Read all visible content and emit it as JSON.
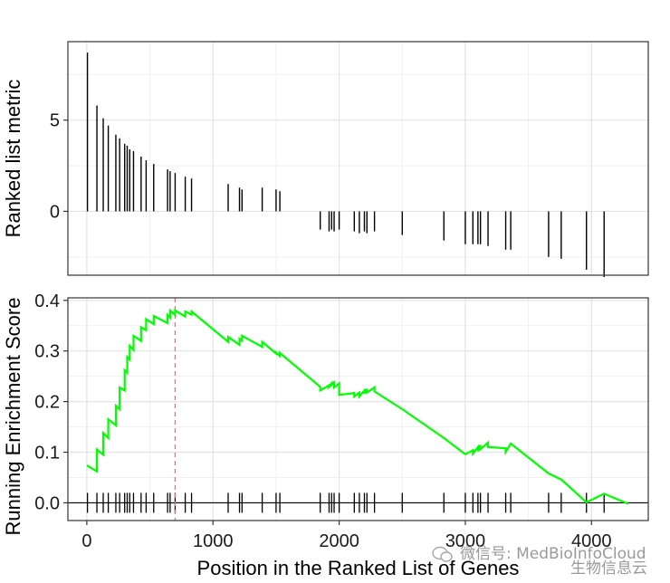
{
  "chart_data": [
    {
      "type": "bar",
      "panel": "ranked-list-metric",
      "ylabel": "Ranked list metric",
      "xlim": [
        -150,
        4450
      ],
      "ylim": [
        -3.5,
        9.3
      ],
      "y_ticks": [
        0,
        5
      ],
      "grid": true,
      "x_positions": [
        5,
        80,
        130,
        170,
        230,
        260,
        300,
        320,
        340,
        370,
        430,
        470,
        530,
        640,
        660,
        700,
        780,
        830,
        1120,
        1210,
        1230,
        1390,
        1500,
        1530,
        1850,
        1920,
        1940,
        1960,
        2000,
        2120,
        2160,
        2200,
        2220,
        2280,
        2500,
        2830,
        3000,
        3060,
        3100,
        3120,
        3180,
        3320,
        3360,
        3660,
        3760,
        3960,
        4100
      ],
      "values": [
        8.7,
        5.8,
        5.1,
        4.7,
        4.2,
        4.0,
        3.7,
        3.6,
        3.4,
        3.3,
        3.0,
        2.8,
        2.6,
        2.3,
        2.2,
        2.1,
        1.9,
        1.8,
        1.5,
        1.3,
        1.2,
        1.3,
        1.2,
        1.1,
        -1.0,
        -1.1,
        -1.0,
        -1.1,
        -1.0,
        -1.1,
        -1.2,
        -1.1,
        -1.2,
        -1.1,
        -1.3,
        -1.6,
        -1.8,
        -1.8,
        -1.8,
        -1.8,
        -1.9,
        -2.1,
        -2.1,
        -2.5,
        -2.6,
        -3.2,
        -3.6
      ]
    },
    {
      "type": "line",
      "panel": "running-enrichment-score",
      "xlabel": "Position in the Ranked List of Genes",
      "ylabel": "Running Enrichment Score",
      "xlim": [
        -150,
        4450
      ],
      "ylim": [
        -0.035,
        0.405
      ],
      "x_ticks": [
        0,
        1000,
        2000,
        3000,
        4000
      ],
      "y_ticks": [
        0.0,
        0.1,
        0.2,
        0.3,
        0.4
      ],
      "y_tick_labels": [
        "0.0",
        "0.1",
        "0.2",
        "0.3",
        "0.4"
      ],
      "grid": true,
      "line_color": "#00ff00",
      "peak_marker_color": "#ff6666",
      "peak_position": 700,
      "x": [
        0,
        80,
        80,
        130,
        130,
        170,
        170,
        230,
        230,
        260,
        260,
        300,
        300,
        320,
        320,
        340,
        340,
        370,
        370,
        430,
        430,
        470,
        470,
        530,
        530,
        640,
        640,
        660,
        660,
        700,
        700,
        780,
        780,
        830,
        830,
        1120,
        1120,
        1210,
        1210,
        1230,
        1230,
        1390,
        1390,
        1500,
        1500,
        1530,
        1530,
        1850,
        1850,
        1920,
        1920,
        1940,
        1940,
        1960,
        1960,
        2000,
        2000,
        2120,
        2120,
        2160,
        2160,
        2200,
        2200,
        2220,
        2220,
        2280,
        2280,
        2500,
        2500,
        2830,
        2830,
        3000,
        3000,
        3060,
        3060,
        3100,
        3100,
        3120,
        3120,
        3180,
        3180,
        3320,
        3320,
        3360,
        3360,
        3660,
        3660,
        3760,
        3760,
        3960,
        3960,
        4100,
        4100,
        4290
      ],
      "y": [
        0.074,
        0.062,
        0.105,
        0.095,
        0.138,
        0.128,
        0.165,
        0.153,
        0.192,
        0.185,
        0.228,
        0.222,
        0.262,
        0.257,
        0.288,
        0.283,
        0.31,
        0.302,
        0.33,
        0.32,
        0.347,
        0.341,
        0.363,
        0.353,
        0.369,
        0.355,
        0.371,
        0.366,
        0.38,
        0.371,
        0.38,
        0.368,
        0.378,
        0.372,
        0.378,
        0.318,
        0.328,
        0.312,
        0.324,
        0.32,
        0.33,
        0.308,
        0.318,
        0.295,
        0.297,
        0.29,
        0.296,
        0.229,
        0.222,
        0.232,
        0.229,
        0.236,
        0.233,
        0.238,
        0.228,
        0.236,
        0.213,
        0.217,
        0.21,
        0.218,
        0.21,
        0.222,
        0.216,
        0.225,
        0.218,
        0.228,
        0.22,
        0.185,
        0.185,
        0.128,
        0.128,
        0.096,
        0.096,
        0.104,
        0.097,
        0.11,
        0.102,
        0.114,
        0.106,
        0.119,
        0.11,
        0.108,
        0.1,
        0.117,
        0.117,
        0.058,
        0.058,
        0.046,
        0.046,
        0.001,
        0.001,
        0.018,
        0.018,
        -0.002
      ],
      "hit_positions": [
        5,
        80,
        130,
        170,
        230,
        260,
        300,
        320,
        340,
        370,
        430,
        470,
        530,
        640,
        660,
        700,
        780,
        830,
        1120,
        1210,
        1230,
        1390,
        1500,
        1530,
        1850,
        1920,
        1940,
        1960,
        2000,
        2120,
        2160,
        2200,
        2220,
        2280,
        2500,
        2830,
        3000,
        3060,
        3100,
        3120,
        3180,
        3320,
        3360,
        3660,
        3760,
        3960,
        4100
      ]
    }
  ],
  "watermark": {
    "line1": "微信号: MedBioInfoCloud",
    "line2": "生物信息云",
    "icon": "wechat-icon"
  }
}
